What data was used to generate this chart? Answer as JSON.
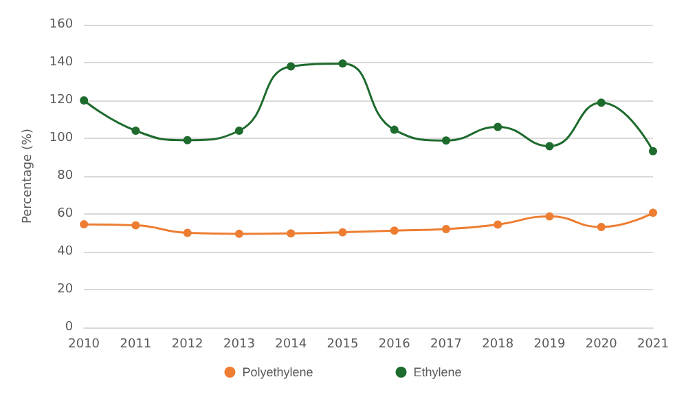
{
  "chart_data": {
    "type": "line",
    "ylabel": "Percentage (%)",
    "categories": [
      "2010",
      "2011",
      "2012",
      "2013",
      "2014",
      "2015",
      "2016",
      "2017",
      "2018",
      "2019",
      "2020",
      "2021"
    ],
    "series": [
      {
        "name": "Polyethylene",
        "color": "#ed7d31",
        "values": [
          54.5,
          54,
          50,
          49.5,
          49.7,
          50.3,
          51.2,
          52,
          54.4,
          58.7,
          53.1,
          60.6
        ]
      },
      {
        "name": "Ethylene",
        "color": "#1e6b2e",
        "values": [
          120,
          104,
          99,
          104,
          138,
          139.5,
          104.5,
          98.8,
          106,
          95.8,
          118.8,
          93.2
        ]
      }
    ],
    "ylim": [
      0,
      160
    ],
    "yticks": [
      0,
      20,
      40,
      60,
      80,
      100,
      120,
      140,
      160
    ],
    "grid": "y",
    "legend": "bottom",
    "marker": "circle",
    "line_style": "solid"
  }
}
